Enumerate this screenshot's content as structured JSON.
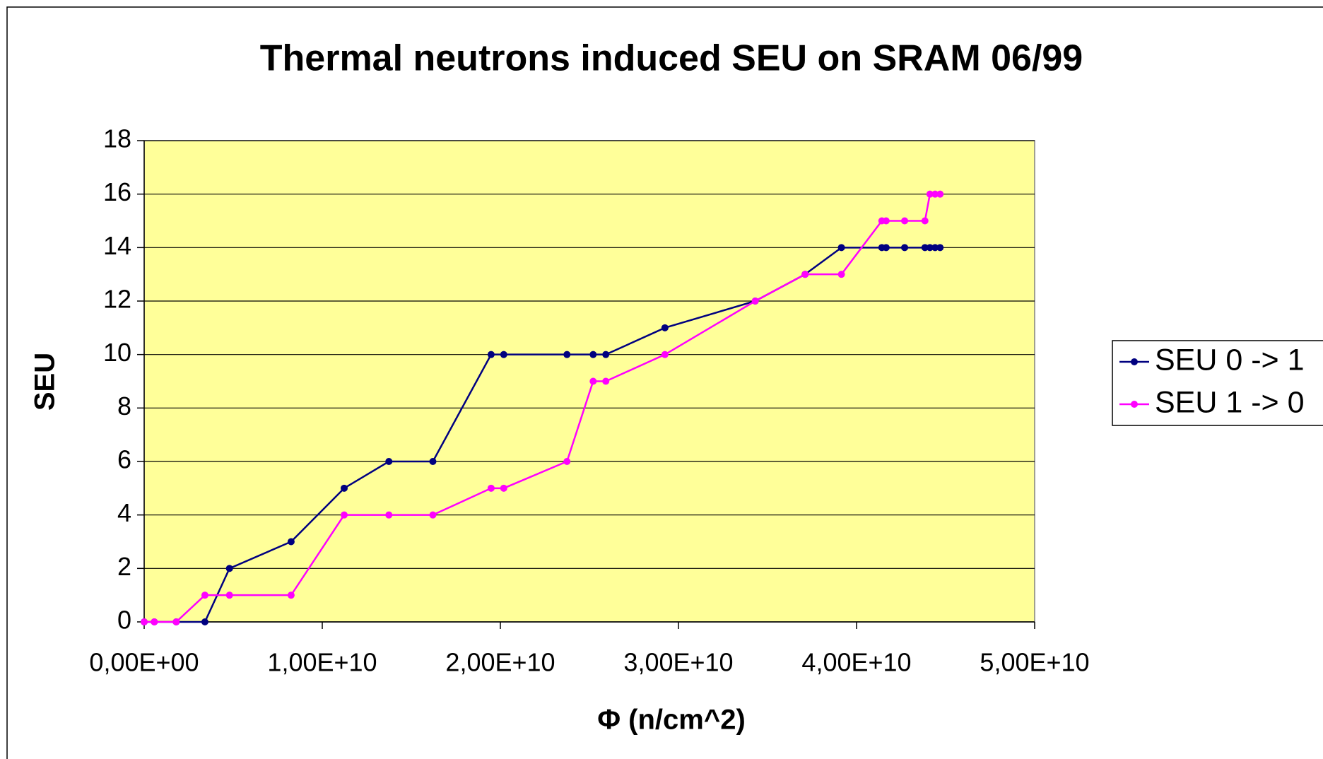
{
  "chart_data": {
    "type": "line",
    "title": "Thermal neutrons induced SEU on SRAM 06/99",
    "x_label": "Φ (n/cm^2)",
    "y_label": "SEU",
    "x": [
      0,
      570000000,
      1800000000,
      3410000000,
      4790000000,
      8250000000,
      11230000000,
      13740000000,
      16210000000,
      19480000000,
      20190000000,
      23740000000,
      25210000000,
      25920000000,
      29240000000,
      34310000000,
      37110000000,
      39150000000,
      41420000000,
      41660000000,
      42700000000,
      43840000000,
      44120000000,
      44410000000,
      44690000000
    ],
    "series": [
      {
        "name": "SEU 0 -> 1",
        "color": "#000080",
        "values": [
          0,
          0,
          0,
          0,
          2,
          3,
          5,
          6,
          6,
          10,
          10,
          10,
          10,
          10,
          11,
          12,
          13,
          14,
          14,
          14,
          14,
          14,
          14,
          14,
          14
        ]
      },
      {
        "name": "SEU 1 -> 0",
        "color": "#ff00ff",
        "values": [
          0,
          0,
          0,
          1,
          1,
          1,
          4,
          4,
          4,
          5,
          5,
          6,
          9,
          9,
          10,
          12,
          13,
          13,
          15,
          15,
          15,
          15,
          16,
          16,
          16
        ]
      }
    ],
    "xlim": [
      0,
      50000000000
    ],
    "xticks": [
      {
        "value": 0,
        "label": "0,00E+00"
      },
      {
        "value": 10000000000,
        "label": "1,00E+10"
      },
      {
        "value": 20000000000,
        "label": "2,00E+10"
      },
      {
        "value": 30000000000,
        "label": "3,00E+10"
      },
      {
        "value": 40000000000,
        "label": "4,00E+10"
      },
      {
        "value": 50000000000,
        "label": "5,00E+10"
      }
    ],
    "ylim": [
      0,
      18
    ],
    "yticks": [
      0,
      2,
      4,
      6,
      8,
      10,
      12,
      14,
      16,
      18
    ],
    "grid": true,
    "plot_background": "#ffff99",
    "legend": "right"
  }
}
